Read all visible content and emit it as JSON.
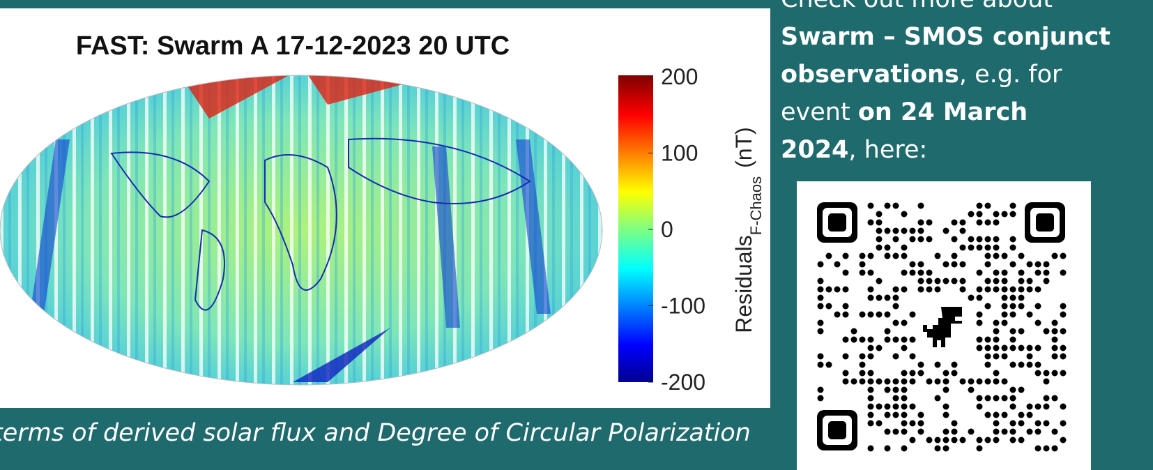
{
  "figure": {
    "title": "FAST: Swarm A 17-12-2023 20 UTC",
    "colorbar": {
      "ticks": [
        200,
        100,
        0,
        -100,
        -200
      ],
      "label": "Residuals",
      "label_subscript": "F-Chaos",
      "unit": "(nT)"
    }
  },
  "caption": "terms of derived solar flux and Degree of Circular Polarization",
  "sidebar": {
    "line1": "Check out more about",
    "line2": "Swarm – SMOS conjunct",
    "line3_bold": "observations",
    "line3_rest": ", e.g. for",
    "line4_normal": "event ",
    "line4_bold": "on 24 March",
    "line5_bold": "2024",
    "line5_rest": ", here:"
  }
}
